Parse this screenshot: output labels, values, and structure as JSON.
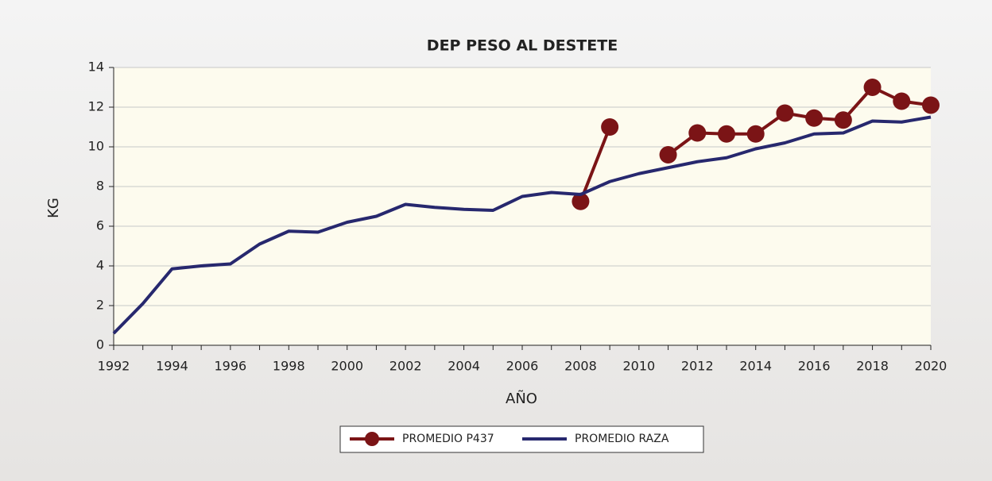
{
  "chart_data": {
    "type": "line",
    "title": "DEP PESO AL DESTETE",
    "x_label": "AÑO",
    "y_label": "KG",
    "x": [
      1992,
      1993,
      1994,
      1995,
      1996,
      1997,
      1998,
      1999,
      2000,
      2001,
      2002,
      2003,
      2004,
      2005,
      2006,
      2007,
      2008,
      2009,
      2010,
      2011,
      2012,
      2013,
      2014,
      2015,
      2016,
      2017,
      2018,
      2019,
      2020
    ],
    "series": [
      {
        "name": "PROMEDIO P437",
        "color": "#7b1416",
        "marker": "circle",
        "values": [
          null,
          null,
          null,
          null,
          null,
          null,
          null,
          null,
          null,
          null,
          null,
          null,
          null,
          null,
          null,
          null,
          7.25,
          11.0,
          null,
          9.6,
          10.7,
          10.65,
          10.65,
          11.7,
          11.45,
          11.35,
          13.0,
          12.3,
          12.1
        ]
      },
      {
        "name": "PROMEDIO RAZA",
        "color": "#27286e",
        "marker": "none",
        "values": [
          0.6,
          2.1,
          3.85,
          4.0,
          4.1,
          5.1,
          5.75,
          5.7,
          6.2,
          6.5,
          7.1,
          6.95,
          6.85,
          6.8,
          7.5,
          7.7,
          7.6,
          8.25,
          8.65,
          8.95,
          9.25,
          9.45,
          9.9,
          10.2,
          10.65,
          10.7,
          11.3,
          11.25,
          11.5
        ]
      }
    ],
    "xlim": [
      1992,
      2020
    ],
    "xticks": [
      1992,
      1994,
      1996,
      1998,
      2000,
      2002,
      2004,
      2006,
      2008,
      2010,
      2012,
      2014,
      2016,
      2018,
      2020
    ],
    "ylim": [
      0,
      14
    ],
    "yticks": [
      0,
      2,
      4,
      6,
      8,
      10,
      12,
      14
    ],
    "grid": true,
    "legend": "bottom"
  }
}
